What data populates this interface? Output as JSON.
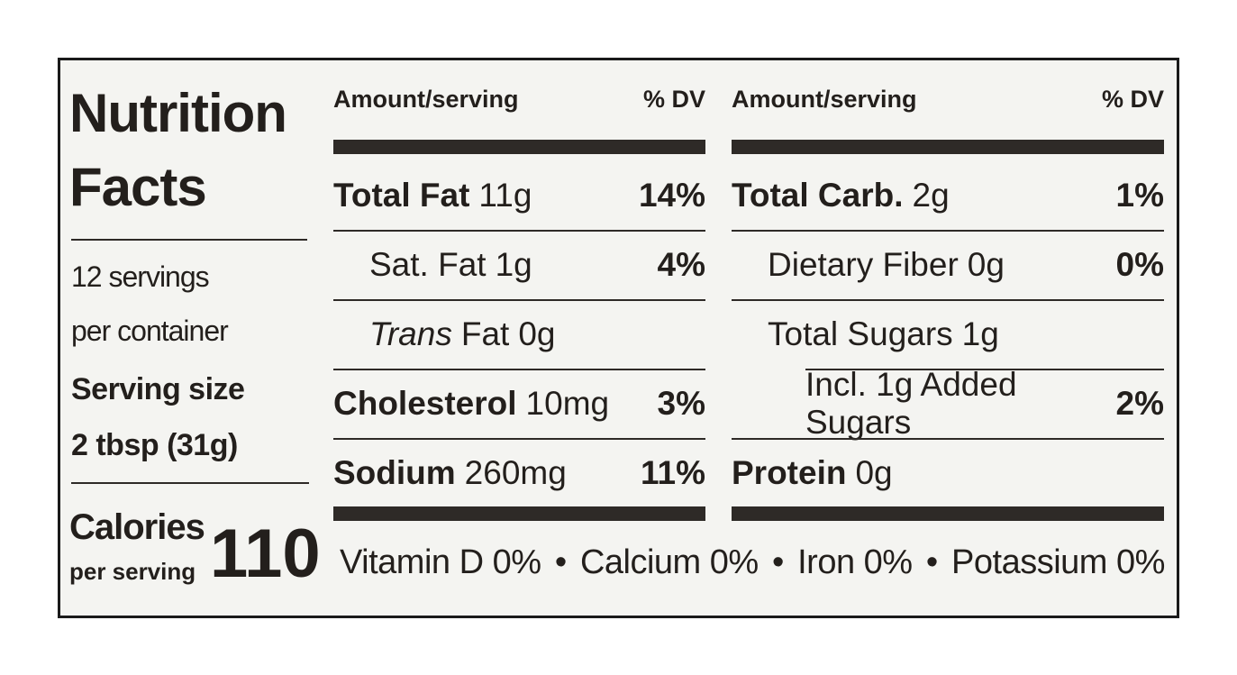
{
  "title": "Nutrition Facts",
  "servings_lines": [
    "12 servings",
    "per container"
  ],
  "serving_size_label": "Serving size",
  "serving_size": "2 tbsp (31g)",
  "calories_label": "Calories",
  "calories_sub": "per serving",
  "calories": 110,
  "columns": [
    {
      "header_amount": "Amount/serving",
      "header_dv": "% DV",
      "rows": [
        {
          "name": "Total Fat",
          "amount": "11g",
          "dv": "14%"
        },
        {
          "name": "Sat. Fat",
          "amount": "1g",
          "dv": "4%",
          "sub": true
        },
        {
          "italic": "Trans",
          "name": "Fat",
          "amount": "0g",
          "sub": true
        },
        {
          "name": "Cholesterol",
          "amount": "10mg",
          "dv": "3%"
        },
        {
          "name": "Sodium",
          "amount": "260mg",
          "dv": "11%"
        }
      ]
    },
    {
      "header_amount": "Amount/serving",
      "header_dv": "% DV",
      "rows": [
        {
          "name": "Total Carb.",
          "amount": "2g",
          "dv": "1%"
        },
        {
          "name": "Dietary Fiber",
          "amount": "0g",
          "dv": "0%",
          "sub": true
        },
        {
          "name": "Total Sugars",
          "amount": "1g",
          "sub": true
        },
        {
          "name": "Incl. 1g Added Sugars",
          "dv": "2%",
          "sub2": true
        },
        {
          "name": "Protein",
          "amount": "0g"
        }
      ]
    }
  ],
  "vitamins": [
    "Vitamin D 0%",
    "Calcium 0%",
    "Iron 0%",
    "Potassium 0%"
  ],
  "separator": "•"
}
